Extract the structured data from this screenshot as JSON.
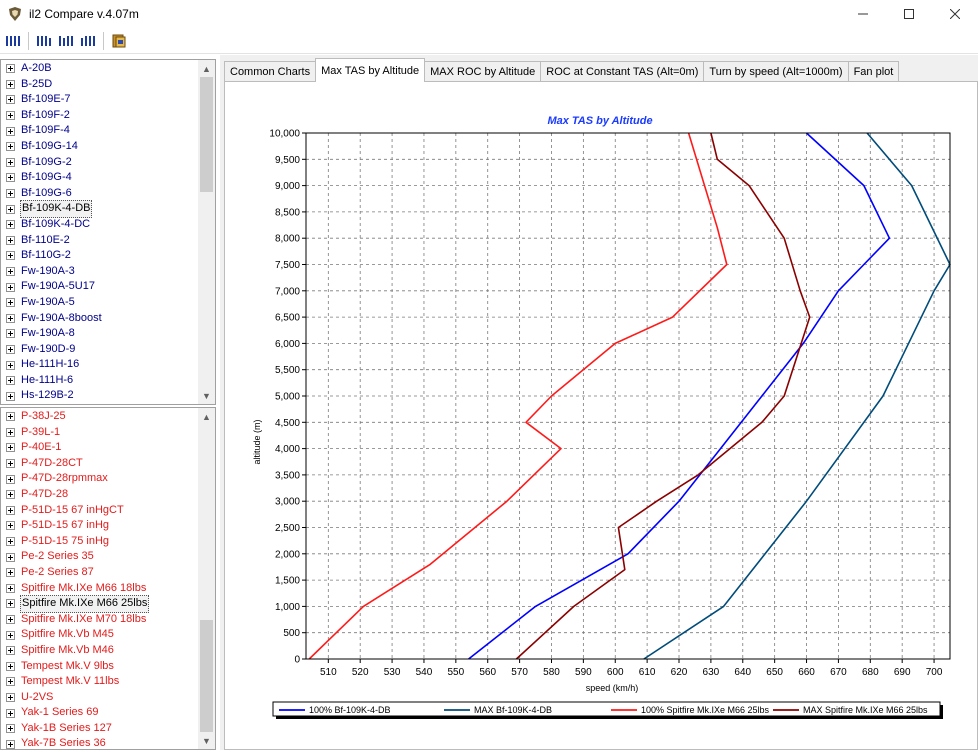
{
  "window": {
    "title": "il2 Compare v.4.07m",
    "controls": [
      "minimize-icon",
      "maximize-icon",
      "close-icon"
    ]
  },
  "toolbar": {
    "buttons": [
      "layout-1-icon",
      "layout-2-icon",
      "layout-3-icon",
      "layout-4-icon",
      "export-icon"
    ]
  },
  "lists": {
    "axis_planes": [
      "A-20B",
      "B-25D",
      "Bf-109E-7",
      "Bf-109F-2",
      "Bf-109F-4",
      "Bf-109G-14",
      "Bf-109G-2",
      "Bf-109G-4",
      "Bf-109G-6",
      "Bf-109K-4-DB",
      "Bf-109K-4-DC",
      "Bf-110E-2",
      "Bf-110G-2",
      "Fw-190A-3",
      "Fw-190A-5U17",
      "Fw-190A-5",
      "Fw-190A-8boost",
      "Fw-190A-8",
      "Fw-190D-9",
      "He-111H-16",
      "He-111H-6",
      "Hs-129B-2"
    ],
    "axis_selected_index": 9,
    "allied_planes": [
      "P-38J-25",
      "P-39L-1",
      "P-40E-1",
      "P-47D-28CT",
      "P-47D-28rpmmax",
      "P-47D-28",
      "P-51D-15 67 inHgCT",
      "P-51D-15 67 inHg",
      "P-51D-15 75 inHg",
      "Pe-2 Series 35",
      "Pe-2 Series 87",
      "Spitfire Mk.IXe M66 18lbs",
      "Spitfire Mk.IXe M66 25lbs",
      "Spitfire Mk.IXe M70 18lbs",
      "Spitfire Mk.Vb M45",
      "Spitfire Mk.Vb M46",
      "Tempest Mk.V  9lbs",
      "Tempest Mk.V 11lbs",
      "U-2VS",
      "Yak-1 Series 69",
      "Yak-1B Series 127",
      "Yak-7B Series 36"
    ],
    "allied_selected_index": 12
  },
  "tabs": [
    {
      "label": "Common Charts",
      "active": false
    },
    {
      "label": "Max TAS by Altitude",
      "active": true
    },
    {
      "label": "MAX ROC by Altitude",
      "active": false
    },
    {
      "label": "ROC at Constant TAS (Alt=0m)",
      "active": false
    },
    {
      "label": "Turn by speed (Alt=1000m)",
      "active": false
    },
    {
      "label": "Fan plot",
      "active": false
    }
  ],
  "chart_data": {
    "type": "line",
    "title": "Max TAS by Altitude",
    "xlabel": "speed (km/h)",
    "ylabel": "altitude (m)",
    "xlim": [
      503,
      705
    ],
    "ylim": [
      0,
      10000
    ],
    "xticks": [
      "510",
      "520",
      "530",
      "540",
      "550",
      "560",
      "570",
      "580",
      "590",
      "600",
      "610",
      "620",
      "630",
      "640",
      "650",
      "660",
      "670",
      "680",
      "690",
      "700"
    ],
    "xtick_values": [
      510,
      520,
      530,
      540,
      550,
      560,
      570,
      580,
      590,
      600,
      610,
      620,
      630,
      640,
      650,
      660,
      670,
      680,
      690,
      700
    ],
    "yticks": [
      "0",
      "500",
      "1,000",
      "1,500",
      "2,000",
      "2,500",
      "3,000",
      "3,500",
      "4,000",
      "4,500",
      "5,000",
      "5,500",
      "6,000",
      "6,500",
      "7,000",
      "7,500",
      "8,000",
      "8,500",
      "9,000",
      "9,500",
      "10,000"
    ],
    "ytick_values": [
      0,
      500,
      1000,
      1500,
      2000,
      2500,
      3000,
      3500,
      4000,
      4500,
      5000,
      5500,
      6000,
      6500,
      7000,
      7500,
      8000,
      8500,
      9000,
      9500,
      10000
    ],
    "grid": true,
    "legend_position": "bottom",
    "series": [
      {
        "name": "100% Bf-109K-4-DB",
        "color": "#0000ff",
        "x": [
          554,
          575,
          604,
          620,
          633,
          646,
          659,
          670,
          678,
          686,
          678,
          660
        ],
        "y": [
          0,
          1000,
          2000,
          3000,
          4000,
          5000,
          6000,
          7000,
          7500,
          8000,
          9000,
          10000
        ]
      },
      {
        "name": "MAX Bf-109K-4-DB",
        "color": "#004c7a",
        "x": [
          609,
          634,
          660,
          684,
          700,
          705,
          693,
          679
        ],
        "y": [
          0,
          1000,
          3000,
          5000,
          7000,
          7500,
          9000,
          10000
        ]
      },
      {
        "name": "100% Spitfire Mk.IXe M66 25lbs",
        "color": "#ff1a1a",
        "x": [
          504,
          521,
          542,
          566,
          583,
          572,
          580,
          600,
          618,
          635,
          632,
          623
        ],
        "y": [
          0,
          1000,
          1800,
          3000,
          4000,
          4500,
          5000,
          6000,
          6500,
          7500,
          8200,
          10000
        ]
      },
      {
        "name": "MAX Spitfire Mk.IXe M66 25lbs",
        "color": "#8b0000",
        "x": [
          569,
          587,
          603,
          601,
          613,
          626,
          646,
          653,
          661,
          658,
          653,
          642,
          632,
          630
        ],
        "y": [
          0,
          1000,
          1700,
          2500,
          3000,
          3500,
          4500,
          5000,
          6500,
          7000,
          8000,
          9000,
          9500,
          10000
        ]
      }
    ]
  }
}
